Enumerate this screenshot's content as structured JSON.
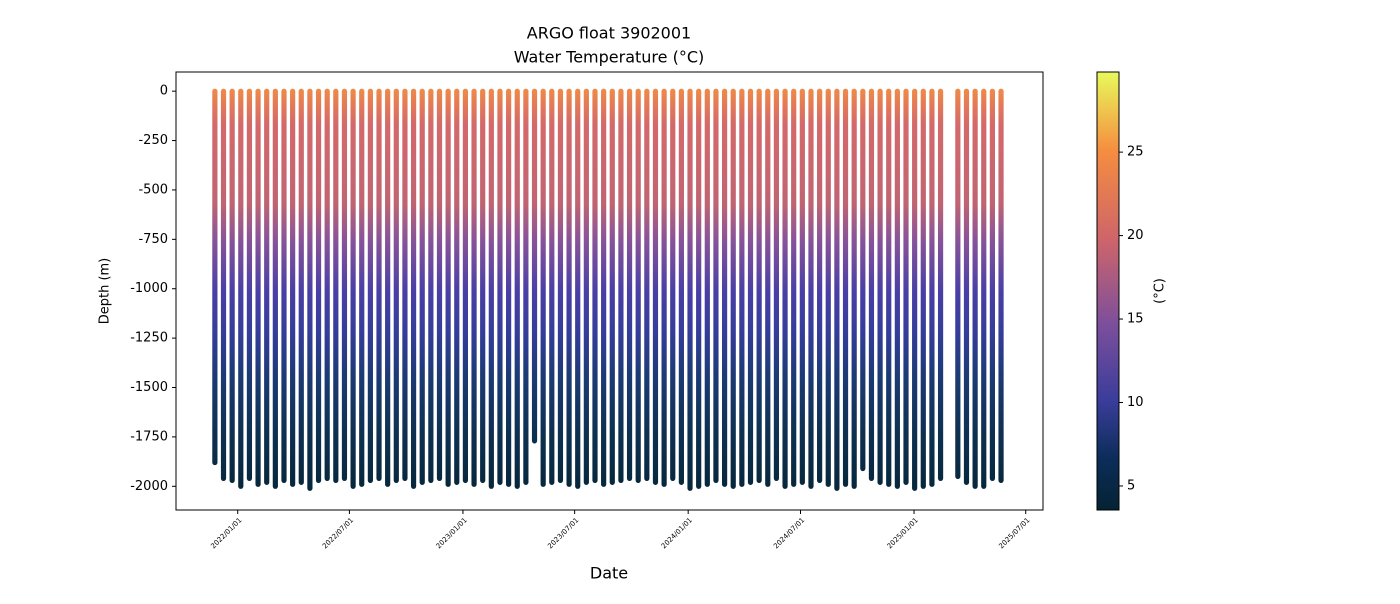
{
  "chart_data": {
    "type": "profile-scatter",
    "title": "ARGO float 3902001",
    "subtitle": "Water Temperature (°C)",
    "xlabel": "Date",
    "ylabel": "Depth (m)",
    "colorbar_label": "(°C)",
    "x": [
      "2021/11/25",
      "2021/12/09",
      "2021/12/23",
      "2022/01/06",
      "2022/01/20",
      "2022/02/03",
      "2022/02/17",
      "2022/03/03",
      "2022/03/17",
      "2022/03/31",
      "2022/04/14",
      "2022/04/28",
      "2022/05/12",
      "2022/05/26",
      "2022/06/09",
      "2022/06/23",
      "2022/07/07",
      "2022/07/21",
      "2022/08/04",
      "2022/08/18",
      "2022/09/01",
      "2022/09/15",
      "2022/09/29",
      "2022/10/13",
      "2022/10/27",
      "2022/11/10",
      "2022/11/24",
      "2022/12/08",
      "2022/12/22",
      "2023/01/05",
      "2023/01/19",
      "2023/02/02",
      "2023/02/16",
      "2023/03/02",
      "2023/03/16",
      "2023/03/30",
      "2023/04/13",
      "2023/04/27",
      "2023/05/11",
      "2023/05/25",
      "2023/06/08",
      "2023/06/22",
      "2023/07/06",
      "2023/07/20",
      "2023/08/03",
      "2023/08/17",
      "2023/08/31",
      "2023/09/14",
      "2023/09/28",
      "2023/10/12",
      "2023/10/26",
      "2023/11/09",
      "2023/11/23",
      "2023/12/07",
      "2023/12/21",
      "2024/01/04",
      "2024/01/18",
      "2024/02/01",
      "2024/02/15",
      "2024/02/29",
      "2024/03/14",
      "2024/03/28",
      "2024/04/11",
      "2024/04/25",
      "2024/05/09",
      "2024/05/23",
      "2024/06/06",
      "2024/06/20",
      "2024/07/04",
      "2024/07/18",
      "2024/08/01",
      "2024/08/15",
      "2024/08/29",
      "2024/09/12",
      "2024/09/26",
      "2024/10/10",
      "2024/10/24",
      "2024/11/07",
      "2024/11/21",
      "2024/12/05",
      "2024/12/19",
      "2025/01/02",
      "2025/01/16",
      "2025/01/30",
      "2025/02/13",
      "2025/03/13",
      "2025/03/27",
      "2025/04/10",
      "2025/04/24",
      "2025/05/08",
      "2025/05/22"
    ],
    "series": [
      {
        "name": "Water Temperature",
        "values": [
          -1880,
          -1960,
          -1970,
          -2000,
          -1960,
          -1990,
          -1980,
          -2000,
          -1970,
          -1990,
          -1980,
          -2010,
          -1970,
          -1960,
          -1970,
          -1960,
          -2000,
          -1990,
          -1970,
          -1960,
          -1990,
          -1970,
          -1960,
          -2000,
          -1980,
          -1970,
          -1960,
          -1990,
          -1980,
          -1970,
          -1990,
          -1970,
          -2000,
          -1980,
          -1990,
          -2000,
          -1980,
          -1770,
          -1990,
          -1980,
          -1970,
          -1990,
          -2000,
          -1980,
          -1970,
          -1990,
          -1980,
          -1970,
          -1960,
          -1970,
          -1960,
          -1980,
          -1990,
          -1960,
          -1980,
          -2010,
          -2000,
          -1990,
          -1970,
          -1990,
          -2000,
          -1990,
          -1980,
          -1970,
          -1990,
          -1960,
          -2000,
          -1990,
          -1980,
          -2000,
          -1970,
          -1990,
          -2010,
          -1990,
          -2000,
          -1910,
          -1960,
          -1980,
          -1990,
          -2000,
          -1980,
          -2010,
          -2000,
          -1990,
          -1960,
          -1950,
          -1980,
          -2000,
          -2000,
          -1960,
          -1970
        ]
      }
    ],
    "xlim": [
      "2021/09/23",
      "2025/07/29"
    ],
    "xticks": [
      "2022/01/01",
      "2022/07/01",
      "2023/01/01",
      "2023/07/01",
      "2024/01/01",
      "2024/07/01",
      "2025/01/01",
      "2025/07/01"
    ],
    "ylim": [
      -2120,
      97
    ],
    "yticks": [
      0,
      -250,
      -500,
      -750,
      -1000,
      -1250,
      -1500,
      -1750,
      -2000
    ],
    "clim": [
      3.56,
      29.8
    ],
    "cticks": [
      5,
      10,
      15,
      20,
      25
    ]
  }
}
